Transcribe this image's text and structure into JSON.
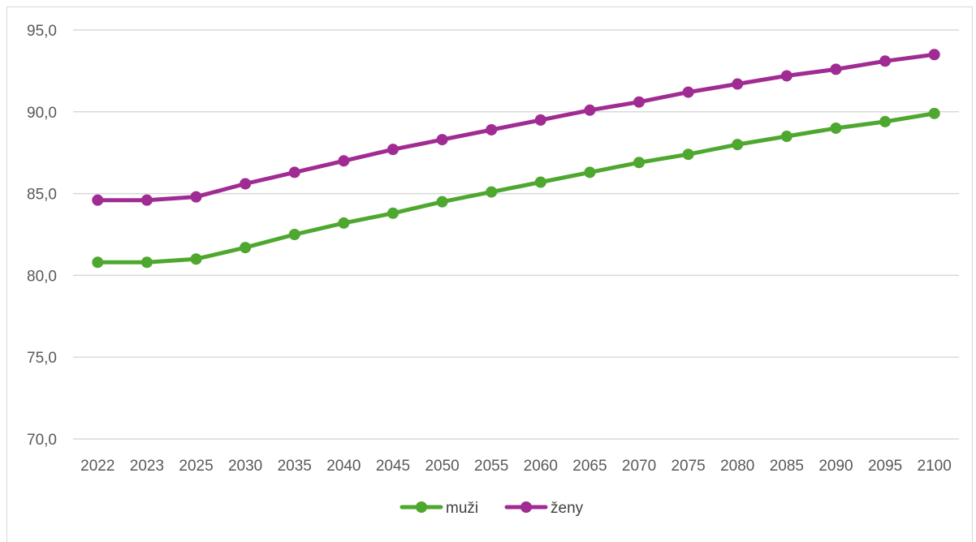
{
  "chart_data": {
    "type": "line",
    "title": "",
    "xlabel": "",
    "ylabel": "",
    "categories": [
      "2022",
      "2023",
      "2025",
      "2030",
      "2035",
      "2040",
      "2045",
      "2050",
      "2055",
      "2060",
      "2065",
      "2070",
      "2075",
      "2080",
      "2085",
      "2090",
      "2095",
      "2100"
    ],
    "ylim": [
      70,
      95
    ],
    "yticks": [
      70,
      75,
      80,
      85,
      90,
      95
    ],
    "ytick_labels": [
      "70,0",
      "75,0",
      "80,0",
      "85,0",
      "90,0",
      "95,0"
    ],
    "grid": "horizontal",
    "legend_position": "bottom",
    "series": [
      {
        "name": "muži",
        "color": "#4EA72E",
        "values": [
          80.8,
          80.8,
          81.0,
          81.7,
          82.5,
          83.2,
          83.8,
          84.5,
          85.1,
          85.7,
          86.3,
          86.9,
          87.4,
          88.0,
          88.5,
          89.0,
          89.4,
          89.9
        ]
      },
      {
        "name": "ženy",
        "color": "#A02B93",
        "values": [
          84.6,
          84.6,
          84.8,
          85.6,
          86.3,
          87.0,
          87.7,
          88.3,
          88.9,
          89.5,
          90.1,
          90.6,
          91.2,
          91.7,
          92.2,
          92.6,
          93.1,
          93.5
        ]
      }
    ]
  }
}
